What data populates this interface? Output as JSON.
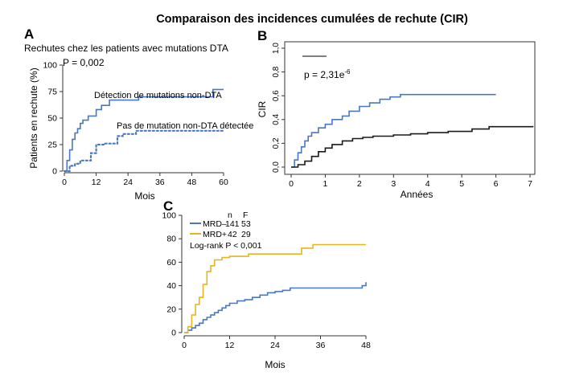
{
  "title": "Comparaison des incidences cumulées de rechute (CIR)",
  "colors": {
    "blue": "#4a78c0",
    "black": "#1a1a1a",
    "gold": "#e6b522",
    "axis": "#333333"
  },
  "chart_data": [
    {
      "panel": "A",
      "type": "line",
      "subtitle": "Rechutes chez les patients avec mutations DTA",
      "xlabel": "Mois",
      "ylabel": "Patients en rechute (%)",
      "xlim": [
        0,
        60
      ],
      "ylim": [
        0,
        100
      ],
      "xticks": [
        0,
        12,
        24,
        36,
        48,
        60
      ],
      "yticks": [
        0,
        25,
        50,
        75,
        100
      ],
      "annotation": "P = 0,002",
      "series": [
        {
          "name": "Détection de mutations non-DTA",
          "color": "#4a78c0",
          "dash": "solid",
          "x": [
            0,
            1,
            2,
            3,
            4,
            5,
            6,
            7,
            9,
            12,
            14,
            17,
            28,
            56,
            60
          ],
          "y": [
            0,
            10,
            20,
            30,
            36,
            40,
            45,
            48,
            52,
            58,
            62,
            67,
            70,
            77,
            77
          ]
        },
        {
          "name": "Pas de mutation non-DTA détectée",
          "color": "#4a78c0",
          "dash": "dotted",
          "x": [
            0,
            2,
            4,
            6,
            10,
            12,
            15,
            20,
            22,
            27,
            60
          ],
          "y": [
            0,
            5,
            7,
            10,
            17,
            25,
            26,
            33,
            35,
            38,
            38
          ]
        }
      ]
    },
    {
      "panel": "B",
      "type": "line",
      "xlabel": "Années",
      "ylabel": "CIR",
      "xlim": [
        0,
        7
      ],
      "ylim": [
        0,
        1
      ],
      "xticks": [
        0,
        1,
        2,
        3,
        4,
        5,
        6,
        7
      ],
      "yticks": [
        "0,0",
        "0,2",
        "0,4",
        "0,6",
        "0,8",
        "1,0"
      ],
      "annotation": "p = 2,31e-6",
      "series": [
        {
          "color": "#4a78c0",
          "x": [
            0,
            0.1,
            0.2,
            0.3,
            0.4,
            0.5,
            0.6,
            0.8,
            1.0,
            1.2,
            1.5,
            1.7,
            2.0,
            2.3,
            2.6,
            2.9,
            3.2,
            6.0
          ],
          "y": [
            0,
            0.06,
            0.12,
            0.17,
            0.22,
            0.26,
            0.29,
            0.33,
            0.36,
            0.4,
            0.43,
            0.47,
            0.51,
            0.54,
            0.57,
            0.59,
            0.61,
            0.61
          ]
        },
        {
          "color": "#1a1a1a",
          "x": [
            0,
            0.2,
            0.4,
            0.6,
            0.8,
            1.0,
            1.2,
            1.5,
            1.8,
            2.1,
            2.4,
            3.0,
            3.5,
            4.0,
            4.6,
            5.3,
            5.8,
            7.1
          ],
          "y": [
            0,
            0.02,
            0.05,
            0.09,
            0.13,
            0.16,
            0.19,
            0.22,
            0.24,
            0.25,
            0.26,
            0.27,
            0.28,
            0.29,
            0.3,
            0.32,
            0.34,
            0.34
          ]
        }
      ]
    },
    {
      "panel": "C",
      "type": "line",
      "xlabel": "Mois",
      "xlim": [
        0,
        48
      ],
      "ylim": [
        0,
        100
      ],
      "xticks": [
        0,
        12,
        24,
        36,
        48
      ],
      "yticks": [
        0,
        20,
        40,
        60,
        80,
        100
      ],
      "legend_header": [
        "n",
        "F"
      ],
      "legend": [
        {
          "name": "MRD–",
          "n": "141",
          "f": "53",
          "color": "#4a78c0"
        },
        {
          "name": "MRD+",
          "n": "42",
          "f": "29",
          "color": "#e6b522"
        }
      ],
      "annotation": "Log-rank P < 0,001",
      "series": [
        {
          "name": "MRD–",
          "color": "#4a78c0",
          "x": [
            0,
            1,
            2,
            3,
            4,
            5,
            6,
            7,
            8,
            9,
            10,
            11,
            12,
            14,
            16,
            18,
            20,
            22,
            24,
            26,
            28,
            47,
            48
          ],
          "y": [
            0,
            2,
            4,
            6,
            8,
            11,
            13,
            15,
            17,
            19,
            21,
            23,
            25,
            27,
            28,
            30,
            32,
            34,
            35,
            36,
            38,
            40,
            43
          ]
        },
        {
          "name": "MRD+",
          "color": "#e6b522",
          "x": [
            0,
            1,
            2,
            3,
            4,
            5,
            6,
            7,
            8,
            10,
            12,
            17,
            31,
            34,
            48
          ],
          "y": [
            0,
            5,
            15,
            24,
            30,
            41,
            52,
            57,
            62,
            64,
            65,
            67,
            72,
            75,
            75
          ]
        }
      ]
    }
  ]
}
